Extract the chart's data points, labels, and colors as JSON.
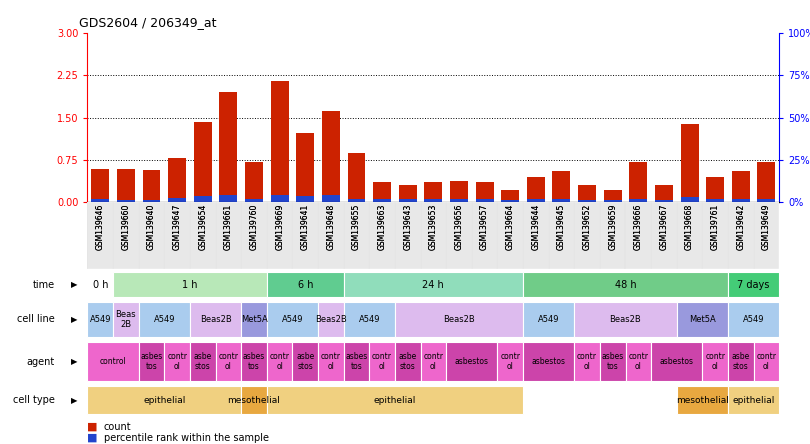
{
  "title": "GDS2604 / 206349_at",
  "samples": [
    "GSM139646",
    "GSM139660",
    "GSM139640",
    "GSM139647",
    "GSM139654",
    "GSM139661",
    "GSM139760",
    "GSM139669",
    "GSM139641",
    "GSM139648",
    "GSM139655",
    "GSM139663",
    "GSM139643",
    "GSM139653",
    "GSM139656",
    "GSM139657",
    "GSM139664",
    "GSM139644",
    "GSM139645",
    "GSM139652",
    "GSM139659",
    "GSM139666",
    "GSM139667",
    "GSM139668",
    "GSM139761",
    "GSM139642",
    "GSM139649"
  ],
  "red_values": [
    0.58,
    0.58,
    0.57,
    0.78,
    1.43,
    1.95,
    0.72,
    2.15,
    1.22,
    1.62,
    0.88,
    0.35,
    0.3,
    0.35,
    0.38,
    0.35,
    0.22,
    0.45,
    0.55,
    0.3,
    0.22,
    0.72,
    0.3,
    1.38,
    0.45,
    0.55,
    0.72
  ],
  "blue_values": [
    0.05,
    0.04,
    0.04,
    0.07,
    0.1,
    0.12,
    0.05,
    0.12,
    0.1,
    0.12,
    0.06,
    0.05,
    0.05,
    0.05,
    0.05,
    0.05,
    0.04,
    0.06,
    0.05,
    0.04,
    0.04,
    0.05,
    0.04,
    0.09,
    0.05,
    0.06,
    0.05
  ],
  "ylim_left": [
    0,
    3
  ],
  "ylim_right": [
    0,
    100
  ],
  "yticks_left": [
    0,
    0.75,
    1.5,
    2.25,
    3
  ],
  "yticks_right": [
    0,
    25,
    50,
    75,
    100
  ],
  "ytick_labels_right": [
    "0%",
    "25%",
    "50%",
    "75%",
    "100%"
  ],
  "dotted_lines": [
    0.75,
    1.5,
    2.25
  ],
  "time_groups": [
    {
      "label": "0 h",
      "start": 0,
      "end": 1,
      "color": "#ffffff"
    },
    {
      "label": "1 h",
      "start": 1,
      "end": 7,
      "color": "#b8e8b8"
    },
    {
      "label": "6 h",
      "start": 7,
      "end": 10,
      "color": "#60cc90"
    },
    {
      "label": "24 h",
      "start": 10,
      "end": 17,
      "color": "#90ddbb"
    },
    {
      "label": "48 h",
      "start": 17,
      "end": 25,
      "color": "#70cc88"
    },
    {
      "label": "7 days",
      "start": 25,
      "end": 27,
      "color": "#44cc77"
    }
  ],
  "cellline_groups": [
    {
      "label": "A549",
      "start": 0,
      "end": 1,
      "color": "#aaccee"
    },
    {
      "label": "Beas\n2B",
      "start": 1,
      "end": 2,
      "color": "#ddbbee"
    },
    {
      "label": "A549",
      "start": 2,
      "end": 4,
      "color": "#aaccee"
    },
    {
      "label": "Beas2B",
      "start": 4,
      "end": 6,
      "color": "#ddbbee"
    },
    {
      "label": "Met5A",
      "start": 6,
      "end": 7,
      "color": "#9999dd"
    },
    {
      "label": "A549",
      "start": 7,
      "end": 9,
      "color": "#aaccee"
    },
    {
      "label": "Beas2B",
      "start": 9,
      "end": 10,
      "color": "#ddbbee"
    },
    {
      "label": "A549",
      "start": 10,
      "end": 12,
      "color": "#aaccee"
    },
    {
      "label": "Beas2B",
      "start": 12,
      "end": 17,
      "color": "#ddbbee"
    },
    {
      "label": "A549",
      "start": 17,
      "end": 19,
      "color": "#aaccee"
    },
    {
      "label": "Beas2B",
      "start": 19,
      "end": 23,
      "color": "#ddbbee"
    },
    {
      "label": "Met5A",
      "start": 23,
      "end": 25,
      "color": "#9999dd"
    },
    {
      "label": "A549",
      "start": 25,
      "end": 27,
      "color": "#aaccee"
    }
  ],
  "agent_groups": [
    {
      "label": "control",
      "start": 0,
      "end": 2,
      "color": "#ee66cc"
    },
    {
      "label": "asbes\ntos",
      "start": 2,
      "end": 3,
      "color": "#cc44aa"
    },
    {
      "label": "contr\nol",
      "start": 3,
      "end": 4,
      "color": "#ee66cc"
    },
    {
      "label": "asbe\nstos",
      "start": 4,
      "end": 5,
      "color": "#cc44aa"
    },
    {
      "label": "contr\nol",
      "start": 5,
      "end": 6,
      "color": "#ee66cc"
    },
    {
      "label": "asbes\ntos",
      "start": 6,
      "end": 7,
      "color": "#cc44aa"
    },
    {
      "label": "contr\nol",
      "start": 7,
      "end": 8,
      "color": "#ee66cc"
    },
    {
      "label": "asbe\nstos",
      "start": 8,
      "end": 9,
      "color": "#cc44aa"
    },
    {
      "label": "contr\nol",
      "start": 9,
      "end": 10,
      "color": "#ee66cc"
    },
    {
      "label": "asbes\ntos",
      "start": 10,
      "end": 11,
      "color": "#cc44aa"
    },
    {
      "label": "contr\nol",
      "start": 11,
      "end": 12,
      "color": "#ee66cc"
    },
    {
      "label": "asbe\nstos",
      "start": 12,
      "end": 13,
      "color": "#cc44aa"
    },
    {
      "label": "contr\nol",
      "start": 13,
      "end": 14,
      "color": "#ee66cc"
    },
    {
      "label": "asbestos",
      "start": 14,
      "end": 16,
      "color": "#cc44aa"
    },
    {
      "label": "contr\nol",
      "start": 16,
      "end": 17,
      "color": "#ee66cc"
    },
    {
      "label": "asbestos",
      "start": 17,
      "end": 19,
      "color": "#cc44aa"
    },
    {
      "label": "contr\nol",
      "start": 19,
      "end": 20,
      "color": "#ee66cc"
    },
    {
      "label": "asbes\ntos",
      "start": 20,
      "end": 21,
      "color": "#cc44aa"
    },
    {
      "label": "contr\nol",
      "start": 21,
      "end": 22,
      "color": "#ee66cc"
    },
    {
      "label": "asbestos",
      "start": 22,
      "end": 24,
      "color": "#cc44aa"
    },
    {
      "label": "contr\nol",
      "start": 24,
      "end": 25,
      "color": "#ee66cc"
    },
    {
      "label": "asbe\nstos",
      "start": 25,
      "end": 26,
      "color": "#cc44aa"
    },
    {
      "label": "contr\nol",
      "start": 26,
      "end": 27,
      "color": "#ee66cc"
    }
  ],
  "celltype_groups": [
    {
      "label": "epithelial",
      "start": 0,
      "end": 6,
      "color": "#f0d080"
    },
    {
      "label": "mesothelial",
      "start": 6,
      "end": 7,
      "color": "#e8a840"
    },
    {
      "label": "epithelial",
      "start": 7,
      "end": 17,
      "color": "#f0d080"
    },
    {
      "label": "mesothelial",
      "start": 23,
      "end": 25,
      "color": "#e8a840"
    },
    {
      "label": "epithelial",
      "start": 25,
      "end": 27,
      "color": "#f0d080"
    }
  ],
  "bar_color_red": "#cc2200",
  "bar_color_blue": "#2244cc",
  "label_legend_count": "count",
  "label_legend_pct": "percentile rank within the sample"
}
